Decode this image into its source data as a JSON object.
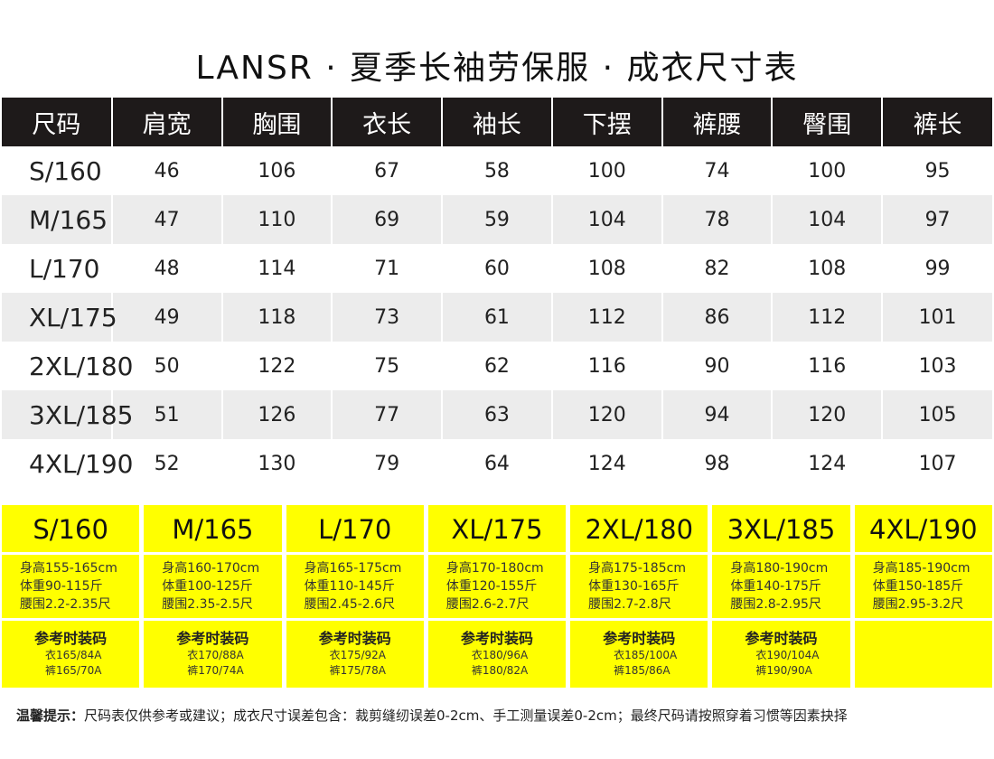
{
  "title": "LANSR · 夏季长袖劳保服 · 成衣尺寸表",
  "table": {
    "headers": [
      "尺码",
      "肩宽",
      "胸围",
      "衣长",
      "袖长",
      "下摆",
      "裤腰",
      "臀围",
      "裤长"
    ],
    "rows": [
      [
        "S/160",
        "46",
        "106",
        "67",
        "58",
        "100",
        "74",
        "100",
        "95"
      ],
      [
        "M/165",
        "47",
        "110",
        "69",
        "59",
        "104",
        "78",
        "104",
        "97"
      ],
      [
        "L/170",
        "48",
        "114",
        "71",
        "60",
        "108",
        "82",
        "108",
        "99"
      ],
      [
        "XL/175",
        "49",
        "118",
        "73",
        "61",
        "112",
        "86",
        "112",
        "101"
      ],
      [
        "2XL/180",
        "50",
        "122",
        "75",
        "62",
        "116",
        "90",
        "116",
        "103"
      ],
      [
        "3XL/185",
        "51",
        "126",
        "77",
        "63",
        "120",
        "94",
        "120",
        "105"
      ],
      [
        "4XL/190",
        "52",
        "130",
        "79",
        "64",
        "124",
        "98",
        "124",
        "107"
      ]
    ]
  },
  "reference": [
    {
      "size": "S/160",
      "lines": [
        "身高155-165cm",
        "体重90-115斤",
        "腰围2.2-2.35尺"
      ],
      "ref_title": "参考时装码",
      "ref_lines": [
        "衣165/84A",
        "裤165/70A"
      ]
    },
    {
      "size": "M/165",
      "lines": [
        "身高160-170cm",
        "体重100-125斤",
        "腰围2.35-2.5尺"
      ],
      "ref_title": "参考时装码",
      "ref_lines": [
        "衣170/88A",
        "裤170/74A"
      ]
    },
    {
      "size": "L/170",
      "lines": [
        "身高165-175cm",
        "体重110-145斤",
        "腰围2.45-2.6尺"
      ],
      "ref_title": "参考时装码",
      "ref_lines": [
        "衣175/92A",
        "裤175/78A"
      ]
    },
    {
      "size": "XL/175",
      "lines": [
        "身高170-180cm",
        "体重120-155斤",
        "腰围2.6-2.7尺"
      ],
      "ref_title": "参考时装码",
      "ref_lines": [
        "衣180/96A",
        "裤180/82A"
      ]
    },
    {
      "size": "2XL/180",
      "lines": [
        "身高175-185cm",
        "体重130-165斤",
        "腰围2.7-2.8尺"
      ],
      "ref_title": "参考时装码",
      "ref_lines": [
        "衣185/100A",
        "裤185/86A"
      ]
    },
    {
      "size": "3XL/185",
      "lines": [
        "身高180-190cm",
        "体重140-175斤",
        "腰围2.8-2.95尺"
      ],
      "ref_title": "参考时装码",
      "ref_lines": [
        "衣190/104A",
        "裤190/90A"
      ]
    },
    {
      "size": "4XL/190",
      "lines": [
        "身高185-190cm",
        "体重150-185斤",
        "腰围2.95-3.2尺"
      ],
      "ref_title": "",
      "ref_lines": []
    }
  ],
  "note": {
    "label": "温馨提示：",
    "text": "尺码表仅供参考或建议；成衣尺寸误差包含：裁剪缝纫误差0-2cm、手工测量误差0-2cm；最终尺码请按照穿着习惯等因素抉择"
  },
  "colors": {
    "header_bg": "#1e1a1a",
    "highlight": "#ffff00",
    "stripe": "#ececec"
  }
}
